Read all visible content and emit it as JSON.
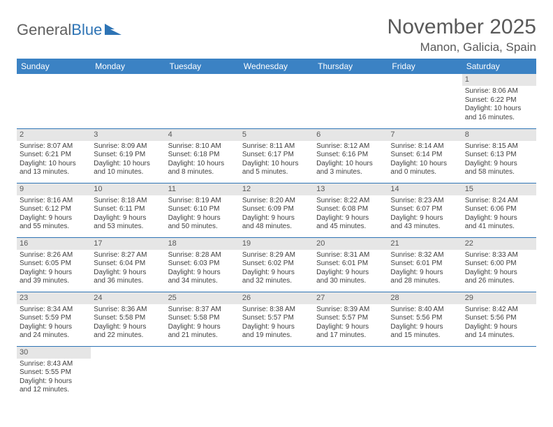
{
  "logo": {
    "text_a": "General",
    "text_b": "Blue"
  },
  "title": "November 2025",
  "location": "Manon, Galicia, Spain",
  "colors": {
    "header_bg": "#3b82c4",
    "header_text": "#ffffff",
    "daynum_bg": "#e6e6e6",
    "cell_border": "#2e74b5",
    "title_color": "#595959",
    "body_text": "#404040"
  },
  "day_headers": [
    "Sunday",
    "Monday",
    "Tuesday",
    "Wednesday",
    "Thursday",
    "Friday",
    "Saturday"
  ],
  "weeks": [
    [
      null,
      null,
      null,
      null,
      null,
      null,
      {
        "n": "1",
        "sr": "Sunrise: 8:06 AM",
        "ss": "Sunset: 6:22 PM",
        "d1": "Daylight: 10 hours",
        "d2": "and 16 minutes."
      }
    ],
    [
      {
        "n": "2",
        "sr": "Sunrise: 8:07 AM",
        "ss": "Sunset: 6:21 PM",
        "d1": "Daylight: 10 hours",
        "d2": "and 13 minutes."
      },
      {
        "n": "3",
        "sr": "Sunrise: 8:09 AM",
        "ss": "Sunset: 6:19 PM",
        "d1": "Daylight: 10 hours",
        "d2": "and 10 minutes."
      },
      {
        "n": "4",
        "sr": "Sunrise: 8:10 AM",
        "ss": "Sunset: 6:18 PM",
        "d1": "Daylight: 10 hours",
        "d2": "and 8 minutes."
      },
      {
        "n": "5",
        "sr": "Sunrise: 8:11 AM",
        "ss": "Sunset: 6:17 PM",
        "d1": "Daylight: 10 hours",
        "d2": "and 5 minutes."
      },
      {
        "n": "6",
        "sr": "Sunrise: 8:12 AM",
        "ss": "Sunset: 6:16 PM",
        "d1": "Daylight: 10 hours",
        "d2": "and 3 minutes."
      },
      {
        "n": "7",
        "sr": "Sunrise: 8:14 AM",
        "ss": "Sunset: 6:14 PM",
        "d1": "Daylight: 10 hours",
        "d2": "and 0 minutes."
      },
      {
        "n": "8",
        "sr": "Sunrise: 8:15 AM",
        "ss": "Sunset: 6:13 PM",
        "d1": "Daylight: 9 hours",
        "d2": "and 58 minutes."
      }
    ],
    [
      {
        "n": "9",
        "sr": "Sunrise: 8:16 AM",
        "ss": "Sunset: 6:12 PM",
        "d1": "Daylight: 9 hours",
        "d2": "and 55 minutes."
      },
      {
        "n": "10",
        "sr": "Sunrise: 8:18 AM",
        "ss": "Sunset: 6:11 PM",
        "d1": "Daylight: 9 hours",
        "d2": "and 53 minutes."
      },
      {
        "n": "11",
        "sr": "Sunrise: 8:19 AM",
        "ss": "Sunset: 6:10 PM",
        "d1": "Daylight: 9 hours",
        "d2": "and 50 minutes."
      },
      {
        "n": "12",
        "sr": "Sunrise: 8:20 AM",
        "ss": "Sunset: 6:09 PM",
        "d1": "Daylight: 9 hours",
        "d2": "and 48 minutes."
      },
      {
        "n": "13",
        "sr": "Sunrise: 8:22 AM",
        "ss": "Sunset: 6:08 PM",
        "d1": "Daylight: 9 hours",
        "d2": "and 45 minutes."
      },
      {
        "n": "14",
        "sr": "Sunrise: 8:23 AM",
        "ss": "Sunset: 6:07 PM",
        "d1": "Daylight: 9 hours",
        "d2": "and 43 minutes."
      },
      {
        "n": "15",
        "sr": "Sunrise: 8:24 AM",
        "ss": "Sunset: 6:06 PM",
        "d1": "Daylight: 9 hours",
        "d2": "and 41 minutes."
      }
    ],
    [
      {
        "n": "16",
        "sr": "Sunrise: 8:26 AM",
        "ss": "Sunset: 6:05 PM",
        "d1": "Daylight: 9 hours",
        "d2": "and 39 minutes."
      },
      {
        "n": "17",
        "sr": "Sunrise: 8:27 AM",
        "ss": "Sunset: 6:04 PM",
        "d1": "Daylight: 9 hours",
        "d2": "and 36 minutes."
      },
      {
        "n": "18",
        "sr": "Sunrise: 8:28 AM",
        "ss": "Sunset: 6:03 PM",
        "d1": "Daylight: 9 hours",
        "d2": "and 34 minutes."
      },
      {
        "n": "19",
        "sr": "Sunrise: 8:29 AM",
        "ss": "Sunset: 6:02 PM",
        "d1": "Daylight: 9 hours",
        "d2": "and 32 minutes."
      },
      {
        "n": "20",
        "sr": "Sunrise: 8:31 AM",
        "ss": "Sunset: 6:01 PM",
        "d1": "Daylight: 9 hours",
        "d2": "and 30 minutes."
      },
      {
        "n": "21",
        "sr": "Sunrise: 8:32 AM",
        "ss": "Sunset: 6:01 PM",
        "d1": "Daylight: 9 hours",
        "d2": "and 28 minutes."
      },
      {
        "n": "22",
        "sr": "Sunrise: 8:33 AM",
        "ss": "Sunset: 6:00 PM",
        "d1": "Daylight: 9 hours",
        "d2": "and 26 minutes."
      }
    ],
    [
      {
        "n": "23",
        "sr": "Sunrise: 8:34 AM",
        "ss": "Sunset: 5:59 PM",
        "d1": "Daylight: 9 hours",
        "d2": "and 24 minutes."
      },
      {
        "n": "24",
        "sr": "Sunrise: 8:36 AM",
        "ss": "Sunset: 5:58 PM",
        "d1": "Daylight: 9 hours",
        "d2": "and 22 minutes."
      },
      {
        "n": "25",
        "sr": "Sunrise: 8:37 AM",
        "ss": "Sunset: 5:58 PM",
        "d1": "Daylight: 9 hours",
        "d2": "and 21 minutes."
      },
      {
        "n": "26",
        "sr": "Sunrise: 8:38 AM",
        "ss": "Sunset: 5:57 PM",
        "d1": "Daylight: 9 hours",
        "d2": "and 19 minutes."
      },
      {
        "n": "27",
        "sr": "Sunrise: 8:39 AM",
        "ss": "Sunset: 5:57 PM",
        "d1": "Daylight: 9 hours",
        "d2": "and 17 minutes."
      },
      {
        "n": "28",
        "sr": "Sunrise: 8:40 AM",
        "ss": "Sunset: 5:56 PM",
        "d1": "Daylight: 9 hours",
        "d2": "and 15 minutes."
      },
      {
        "n": "29",
        "sr": "Sunrise: 8:42 AM",
        "ss": "Sunset: 5:56 PM",
        "d1": "Daylight: 9 hours",
        "d2": "and 14 minutes."
      }
    ],
    [
      {
        "n": "30",
        "sr": "Sunrise: 8:43 AM",
        "ss": "Sunset: 5:55 PM",
        "d1": "Daylight: 9 hours",
        "d2": "and 12 minutes."
      },
      null,
      null,
      null,
      null,
      null,
      null
    ]
  ]
}
